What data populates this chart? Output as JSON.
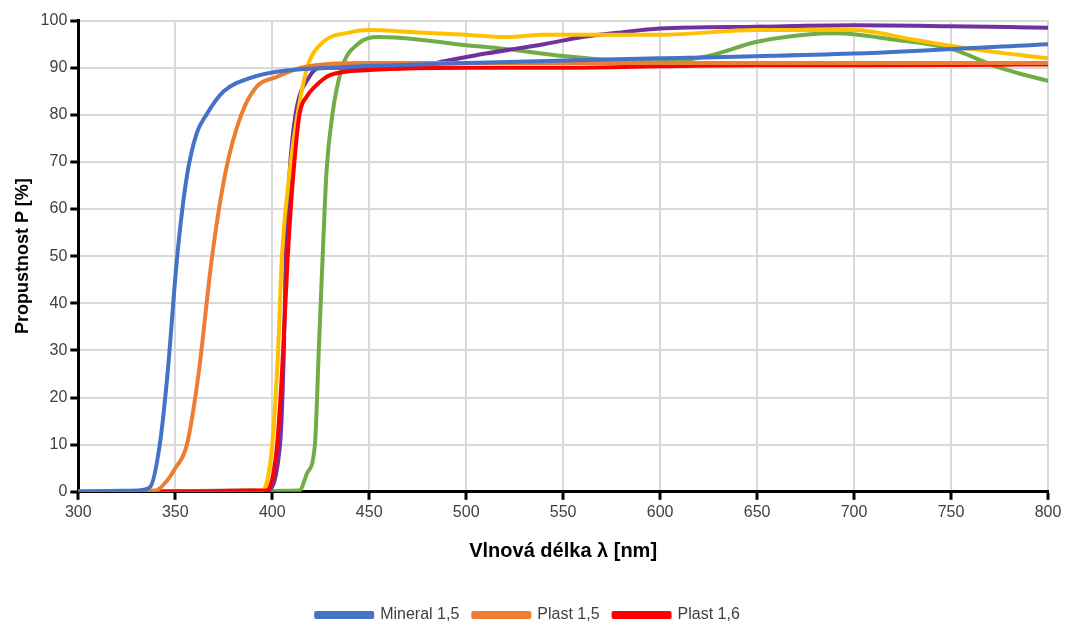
{
  "chart_data": {
    "type": "line",
    "xlabel": "Vlnová délka λ [nm]",
    "ylabel": "Propustnost P [%]",
    "xlim": [
      300,
      800
    ],
    "ylim": [
      0,
      100
    ],
    "xticks": [
      300,
      350,
      400,
      450,
      500,
      550,
      600,
      650,
      700,
      750,
      800
    ],
    "yticks": [
      0,
      10,
      20,
      30,
      40,
      50,
      60,
      70,
      80,
      90,
      100
    ],
    "grid": true,
    "legend": "bottom",
    "marker": "none",
    "line_style": "solid",
    "series": [
      {
        "name": "Mineral 1,5",
        "color": "#4472c4",
        "x": [
          300,
          331,
          337,
          342,
          346,
          351,
          356,
          361,
          366,
          375,
          390,
          400,
          430,
          500,
          600,
          700,
          800
        ],
        "values": [
          0,
          0.3,
          1,
          10,
          25,
          50,
          67,
          76,
          80,
          85,
          88,
          89,
          90,
          91,
          92,
          93,
          95
        ]
      },
      {
        "name": "Plast 1,5",
        "color": "#ed7d31",
        "x": [
          300,
          340,
          345,
          350,
          356,
          362,
          369,
          376,
          384,
          392,
          402,
          415,
          450,
          500,
          600,
          700,
          800
        ],
        "values": [
          0,
          0.3,
          2,
          5,
          10,
          25,
          50,
          68,
          80,
          86,
          88,
          90,
          91,
          91,
          91,
          91,
          91
        ]
      },
      {
        "name": "Plast 1,6",
        "color": "#ff0000",
        "x": [
          300,
          397,
          402,
          405,
          408,
          411,
          414,
          418,
          422,
          430,
          450,
          500,
          550,
          600,
          650,
          700,
          750,
          800
        ],
        "values": [
          0,
          0.3,
          8,
          25,
          50,
          68,
          80,
          84,
          86,
          88.5,
          89.5,
          90,
          90,
          90.3,
          90.5,
          90.5,
          90.6,
          90.7
        ]
      },
      {
        "color": "#ffc000",
        "x": [
          300,
          395,
          400,
          403,
          405,
          409,
          413,
          418,
          425,
          440,
          450,
          475,
          500,
          520,
          540,
          600,
          650,
          700,
          730,
          760,
          800
        ],
        "values": [
          0,
          0.3,
          10,
          30,
          50,
          68,
          80,
          90,
          95,
          97.5,
          98,
          97.5,
          97,
          96.5,
          97,
          97,
          98,
          98,
          96,
          94,
          92
        ]
      },
      {
        "color": "#7030a0",
        "x": [
          300,
          397,
          404,
          406,
          407,
          409,
          412,
          419,
          425,
          450,
          470,
          490,
          510,
          540,
          560,
          580,
          600,
          650,
          700,
          750,
          800
        ],
        "values": [
          0,
          0.3,
          10,
          30,
          50,
          68,
          80,
          88,
          90,
          90,
          90,
          91.5,
          93,
          95,
          96.5,
          97.5,
          98.3,
          98.7,
          99,
          98.8,
          98.5
        ]
      },
      {
        "color": "#70ad47",
        "x": [
          300,
          414,
          418,
          422,
          424,
          426,
          428,
          431,
          436,
          444,
          455,
          475,
          495,
          520,
          550,
          580,
          600,
          625,
          650,
          675,
          690,
          720,
          750,
          775,
          800
        ],
        "values": [
          0,
          0.3,
          4,
          10,
          30,
          50,
          68,
          80,
          90,
          95,
          96.5,
          96,
          95,
          94,
          92.5,
          91.5,
          91.3,
          92.5,
          95.5,
          97,
          97.3,
          96,
          94,
          90,
          87.2
        ]
      }
    ]
  }
}
